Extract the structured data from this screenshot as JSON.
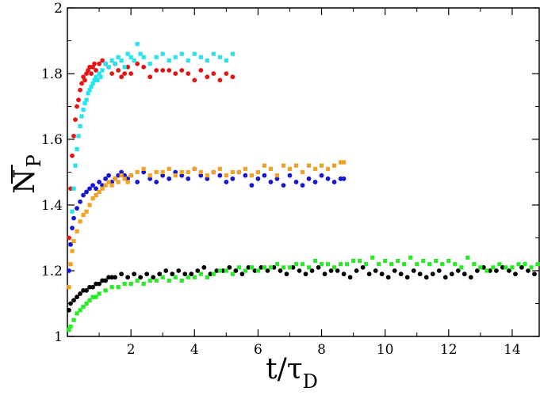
{
  "chart_data": {
    "type": "scatter",
    "title": "",
    "xlabel": "t/τD",
    "xlabel_main": "t/τ",
    "xlabel_sub": "D",
    "ylabel": "NP",
    "ylabel_main": "N",
    "ylabel_sub": "P",
    "xlim": [
      0,
      14.85
    ],
    "ylim": [
      1,
      2
    ],
    "xticks": [
      2,
      4,
      6,
      8,
      10,
      12,
      14
    ],
    "yticks": [
      1,
      1.2,
      1.4,
      1.6,
      1.8,
      2
    ],
    "ytick_labels": [
      "1",
      "1.2",
      "1.4",
      "1.6",
      "1.8",
      "2"
    ],
    "xtick_labels": [
      "2",
      "4",
      "6",
      "8",
      "10",
      "12",
      "14"
    ],
    "grid": false,
    "legend": "none",
    "series": [
      {
        "name": "red",
        "color": "#e81313",
        "marker": "circle",
        "x": [
          0.05,
          0.1,
          0.15,
          0.2,
          0.25,
          0.3,
          0.35,
          0.4,
          0.45,
          0.5,
          0.55,
          0.6,
          0.65,
          0.7,
          0.75,
          0.8,
          0.85,
          0.9,
          1.0,
          1.1,
          1.2,
          1.3,
          1.4,
          1.5,
          1.6,
          1.7,
          1.8,
          1.9,
          2.0,
          2.2,
          2.4,
          2.6,
          2.8,
          3.0,
          3.2,
          3.4,
          3.6,
          3.8,
          4.0,
          4.2,
          4.4,
          4.6,
          4.8,
          5.0,
          5.2
        ],
        "y": [
          1.3,
          1.45,
          1.55,
          1.61,
          1.66,
          1.7,
          1.72,
          1.75,
          1.77,
          1.79,
          1.78,
          1.8,
          1.81,
          1.82,
          1.8,
          1.82,
          1.83,
          1.81,
          1.83,
          1.84,
          1.83,
          1.82,
          1.8,
          1.83,
          1.81,
          1.79,
          1.8,
          1.82,
          1.8,
          1.83,
          1.82,
          1.79,
          1.81,
          1.81,
          1.81,
          1.8,
          1.81,
          1.8,
          1.78,
          1.81,
          1.79,
          1.8,
          1.78,
          1.8,
          1.79
        ]
      },
      {
        "name": "cyan",
        "color": "#22e6ee",
        "marker": "square",
        "x": [
          0.1,
          0.15,
          0.2,
          0.25,
          0.3,
          0.35,
          0.4,
          0.45,
          0.5,
          0.55,
          0.6,
          0.65,
          0.7,
          0.75,
          0.8,
          0.85,
          0.9,
          0.95,
          1.0,
          1.05,
          1.1,
          1.2,
          1.3,
          1.4,
          1.5,
          1.6,
          1.7,
          1.8,
          1.9,
          2.0,
          2.1,
          2.2,
          2.3,
          2.4,
          2.6,
          2.8,
          3.0,
          3.2,
          3.4,
          3.6,
          3.8,
          4.0,
          4.2,
          4.4,
          4.6,
          4.8,
          5.0,
          5.2
        ],
        "y": [
          1.28,
          1.38,
          1.45,
          1.52,
          1.57,
          1.61,
          1.64,
          1.67,
          1.69,
          1.71,
          1.72,
          1.74,
          1.75,
          1.76,
          1.77,
          1.78,
          1.79,
          1.78,
          1.8,
          1.79,
          1.81,
          1.83,
          1.82,
          1.84,
          1.83,
          1.85,
          1.84,
          1.82,
          1.86,
          1.85,
          1.84,
          1.89,
          1.86,
          1.85,
          1.83,
          1.85,
          1.86,
          1.84,
          1.85,
          1.86,
          1.84,
          1.86,
          1.85,
          1.84,
          1.86,
          1.85,
          1.84,
          1.86
        ]
      },
      {
        "name": "blue",
        "color": "#1515d8",
        "marker": "circle",
        "x": [
          0.05,
          0.1,
          0.15,
          0.2,
          0.3,
          0.4,
          0.5,
          0.6,
          0.7,
          0.8,
          0.9,
          1.0,
          1.1,
          1.2,
          1.3,
          1.4,
          1.5,
          1.6,
          1.7,
          1.8,
          1.9,
          2.0,
          2.2,
          2.4,
          2.6,
          2.8,
          3.0,
          3.2,
          3.4,
          3.6,
          3.8,
          4.0,
          4.2,
          4.4,
          4.6,
          4.8,
          5.0,
          5.2,
          5.4,
          5.6,
          5.8,
          6.0,
          6.2,
          6.4,
          6.6,
          6.8,
          7.0,
          7.2,
          7.4,
          7.6,
          7.8,
          8.0,
          8.2,
          8.4,
          8.6,
          8.7
        ],
        "y": [
          1.2,
          1.28,
          1.33,
          1.36,
          1.39,
          1.41,
          1.43,
          1.44,
          1.45,
          1.46,
          1.45,
          1.47,
          1.46,
          1.48,
          1.49,
          1.47,
          1.48,
          1.49,
          1.5,
          1.49,
          1.48,
          1.49,
          1.47,
          1.5,
          1.48,
          1.47,
          1.49,
          1.48,
          1.5,
          1.49,
          1.48,
          1.51,
          1.49,
          1.48,
          1.5,
          1.49,
          1.47,
          1.48,
          1.5,
          1.49,
          1.46,
          1.48,
          1.49,
          1.47,
          1.48,
          1.46,
          1.49,
          1.47,
          1.46,
          1.48,
          1.47,
          1.49,
          1.48,
          1.47,
          1.48,
          1.48
        ]
      },
      {
        "name": "orange",
        "color": "#f5a11e",
        "marker": "square",
        "x": [
          0.05,
          0.1,
          0.15,
          0.2,
          0.3,
          0.4,
          0.5,
          0.6,
          0.7,
          0.8,
          0.9,
          1.0,
          1.1,
          1.2,
          1.3,
          1.4,
          1.5,
          1.6,
          1.7,
          1.8,
          1.9,
          2.0,
          2.2,
          2.4,
          2.6,
          2.8,
          3.0,
          3.2,
          3.4,
          3.6,
          3.8,
          4.0,
          4.2,
          4.4,
          4.6,
          4.8,
          5.0,
          5.2,
          5.4,
          5.6,
          5.8,
          6.0,
          6.2,
          6.4,
          6.6,
          6.8,
          7.0,
          7.2,
          7.4,
          7.6,
          7.8,
          8.0,
          8.2,
          8.4,
          8.6,
          8.7
        ],
        "y": [
          1.15,
          1.22,
          1.26,
          1.29,
          1.32,
          1.35,
          1.37,
          1.38,
          1.4,
          1.42,
          1.43,
          1.44,
          1.45,
          1.46,
          1.47,
          1.46,
          1.48,
          1.47,
          1.49,
          1.48,
          1.47,
          1.49,
          1.5,
          1.51,
          1.49,
          1.5,
          1.5,
          1.51,
          1.49,
          1.5,
          1.5,
          1.51,
          1.5,
          1.49,
          1.5,
          1.51,
          1.49,
          1.5,
          1.5,
          1.51,
          1.49,
          1.5,
          1.52,
          1.51,
          1.49,
          1.52,
          1.51,
          1.52,
          1.5,
          1.52,
          1.51,
          1.52,
          1.51,
          1.52,
          1.53,
          1.53
        ]
      },
      {
        "name": "black",
        "color": "#000000",
        "marker": "circle",
        "x": [
          0.05,
          0.1,
          0.2,
          0.3,
          0.4,
          0.5,
          0.6,
          0.7,
          0.8,
          0.9,
          1.0,
          1.1,
          1.2,
          1.3,
          1.4,
          1.5,
          1.7,
          1.9,
          2.1,
          2.3,
          2.5,
          2.7,
          2.9,
          3.1,
          3.3,
          3.5,
          3.7,
          3.9,
          4.1,
          4.3,
          4.5,
          4.7,
          4.9,
          5.1,
          5.3,
          5.5,
          5.7,
          5.9,
          6.1,
          6.3,
          6.5,
          6.7,
          6.9,
          7.1,
          7.3,
          7.5,
          7.7,
          7.9,
          8.1,
          8.3,
          8.5,
          8.7,
          8.9,
          9.1,
          9.3,
          9.5,
          9.7,
          9.9,
          10.1,
          10.3,
          10.5,
          10.7,
          10.9,
          11.1,
          11.3,
          11.5,
          11.7,
          11.9,
          12.1,
          12.3,
          12.5,
          12.7,
          12.9,
          13.1,
          13.3,
          13.5,
          13.7,
          13.9,
          14.1,
          14.3,
          14.5,
          14.7
        ],
        "y": [
          1.08,
          1.1,
          1.11,
          1.12,
          1.13,
          1.14,
          1.14,
          1.15,
          1.15,
          1.16,
          1.16,
          1.17,
          1.17,
          1.18,
          1.18,
          1.18,
          1.19,
          1.18,
          1.19,
          1.18,
          1.19,
          1.18,
          1.19,
          1.2,
          1.19,
          1.2,
          1.19,
          1.19,
          1.2,
          1.21,
          1.19,
          1.2,
          1.2,
          1.21,
          1.2,
          1.19,
          1.21,
          1.2,
          1.21,
          1.2,
          1.21,
          1.2,
          1.19,
          1.21,
          1.2,
          1.19,
          1.2,
          1.21,
          1.19,
          1.2,
          1.2,
          1.19,
          1.18,
          1.2,
          1.21,
          1.19,
          1.2,
          1.19,
          1.18,
          1.2,
          1.19,
          1.18,
          1.2,
          1.19,
          1.18,
          1.19,
          1.2,
          1.18,
          1.19,
          1.2,
          1.19,
          1.18,
          1.2,
          1.21,
          1.2,
          1.2,
          1.21,
          1.2,
          1.19,
          1.21,
          1.2,
          1.19
        ]
      },
      {
        "name": "green",
        "color": "#22ee22",
        "marker": "square",
        "x": [
          0.05,
          0.1,
          0.2,
          0.3,
          0.4,
          0.5,
          0.6,
          0.7,
          0.8,
          0.9,
          1.0,
          1.2,
          1.4,
          1.6,
          1.8,
          2.0,
          2.2,
          2.4,
          2.6,
          2.8,
          3.0,
          3.2,
          3.4,
          3.6,
          3.8,
          4.0,
          4.2,
          4.4,
          4.6,
          4.8,
          5.0,
          5.2,
          5.4,
          5.6,
          5.8,
          6.0,
          6.2,
          6.4,
          6.6,
          6.8,
          7.0,
          7.2,
          7.4,
          7.6,
          7.8,
          8.0,
          8.2,
          8.4,
          8.6,
          8.8,
          9.0,
          9.2,
          9.4,
          9.6,
          9.8,
          10.0,
          10.2,
          10.4,
          10.6,
          10.8,
          11.0,
          11.2,
          11.4,
          11.6,
          11.8,
          12.0,
          12.2,
          12.4,
          12.6,
          12.8,
          13.0,
          13.2,
          13.4,
          13.6,
          13.8,
          14.0,
          14.2,
          14.4,
          14.6,
          14.8
        ],
        "y": [
          1.02,
          1.03,
          1.05,
          1.07,
          1.08,
          1.09,
          1.1,
          1.11,
          1.12,
          1.12,
          1.13,
          1.14,
          1.15,
          1.15,
          1.16,
          1.16,
          1.17,
          1.16,
          1.17,
          1.17,
          1.18,
          1.17,
          1.18,
          1.17,
          1.18,
          1.18,
          1.19,
          1.18,
          1.19,
          1.2,
          1.2,
          1.19,
          1.21,
          1.2,
          1.21,
          1.2,
          1.21,
          1.21,
          1.22,
          1.21,
          1.21,
          1.22,
          1.22,
          1.21,
          1.23,
          1.22,
          1.22,
          1.21,
          1.22,
          1.22,
          1.23,
          1.23,
          1.22,
          1.24,
          1.22,
          1.23,
          1.22,
          1.23,
          1.22,
          1.24,
          1.22,
          1.23,
          1.22,
          1.23,
          1.22,
          1.23,
          1.22,
          1.21,
          1.24,
          1.22,
          1.21,
          1.2,
          1.21,
          1.22,
          1.21,
          1.21,
          1.22,
          1.22,
          1.21,
          1.22
        ]
      }
    ]
  }
}
